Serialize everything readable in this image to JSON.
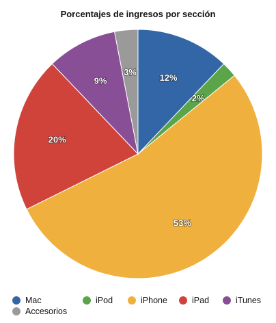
{
  "chart_data": {
    "type": "pie",
    "title": "Porcentajes de ingresos por sección",
    "slices": [
      {
        "label": "Mac",
        "value": 12,
        "display": "12%",
        "color": "#3366a6"
      },
      {
        "label": "iPod",
        "value": 2,
        "display": "2%",
        "color": "#5aa54a"
      },
      {
        "label": "iPhone",
        "value": 53,
        "display": "53%",
        "color": "#f0b03e"
      },
      {
        "label": "iPad",
        "value": 20,
        "display": "20%",
        "color": "#d0433b"
      },
      {
        "label": "iTunes",
        "value": 9,
        "display": "9%",
        "color": "#884f96"
      },
      {
        "label": "Accesorios",
        "value": 3,
        "display": "3%",
        "color": "#9a9a9a"
      }
    ],
    "legend_position": "bottom"
  }
}
